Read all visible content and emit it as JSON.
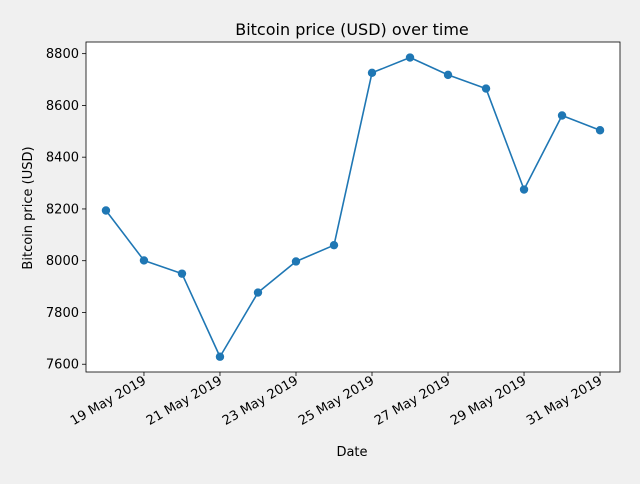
{
  "chart_data": {
    "type": "line",
    "title": "Bitcoin price (USD) over time",
    "xlabel": "Date",
    "ylabel": "Bitcoin price (USD)",
    "x": [
      "2019-05-18",
      "2019-05-19",
      "2019-05-20",
      "2019-05-21",
      "2019-05-22",
      "2019-05-23",
      "2019-05-24",
      "2019-05-25",
      "2019-05-26",
      "2019-05-27",
      "2019-05-28",
      "2019-05-29",
      "2019-05-30",
      "2019-05-31"
    ],
    "series": [
      {
        "values": [
          8194,
          8001,
          7950,
          7629,
          7877,
          7997,
          8060,
          8726,
          8785,
          8718,
          8665,
          8275,
          8561,
          8504
        ],
        "color": "#1f77b4"
      }
    ],
    "ylim": [
      7570,
      8845
    ],
    "xlim": [
      "2019-05-17T11:24:00",
      "2019-05-31T12:36:00"
    ],
    "xticks": [
      "2019-05-19",
      "2019-05-21",
      "2019-05-23",
      "2019-05-25",
      "2019-05-27",
      "2019-05-29",
      "2019-05-31"
    ],
    "xtick_labels": [
      "19 May 2019",
      "21 May 2019",
      "23 May 2019",
      "25 May 2019",
      "27 May 2019",
      "29 May 2019",
      "31 May 2019"
    ],
    "yticks": [
      7600,
      7800,
      8000,
      8200,
      8400,
      8600,
      8800
    ],
    "ytick_labels": [
      "7600",
      "7800",
      "8000",
      "8200",
      "8400",
      "8600",
      "8800"
    ],
    "grid": false,
    "marker": "circle"
  }
}
